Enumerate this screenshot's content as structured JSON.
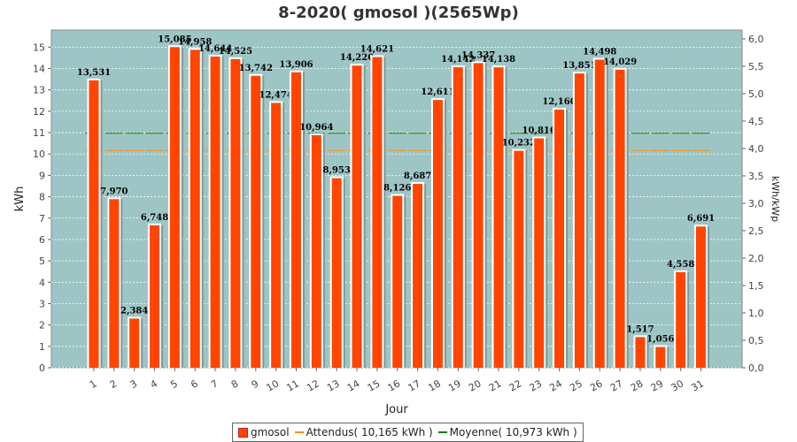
{
  "chart_data": {
    "type": "bar",
    "title": "8-2020( gmosol )(2565Wp)",
    "xlabel": "Jour",
    "ylabel": "kWh",
    "y2label": "kWh/kWp",
    "ylim": [
      0,
      15.8
    ],
    "y2lim": [
      0,
      6.16
    ],
    "yticks": [
      0,
      1,
      2,
      3,
      4,
      5,
      6,
      7,
      8,
      9,
      10,
      11,
      12,
      13,
      14,
      15
    ],
    "y2ticks": [
      "0,0",
      "0,5",
      "1,0",
      "1,5",
      "2,0",
      "2,5",
      "3,0",
      "3,5",
      "4,0",
      "4,5",
      "5,0",
      "5,5",
      "6,0"
    ],
    "grid": true,
    "legend_position": "bottom",
    "categories": [
      "1",
      "2",
      "3",
      "4",
      "5",
      "6",
      "7",
      "8",
      "9",
      "10",
      "11",
      "12",
      "13",
      "14",
      "15",
      "16",
      "17",
      "18",
      "19",
      "20",
      "21",
      "22",
      "23",
      "24",
      "25",
      "26",
      "27",
      "28",
      "29",
      "30",
      "31"
    ],
    "series": [
      {
        "name": "gmosol",
        "color": "#ff4500",
        "values": [
          13.531,
          7.97,
          2.384,
          6.748,
          15.085,
          14.958,
          14.644,
          14.525,
          13.742,
          12.474,
          13.906,
          10.964,
          8.953,
          14.22,
          14.621,
          8.126,
          8.687,
          12.611,
          14.142,
          14.337,
          14.138,
          10.232,
          10.816,
          12.16,
          13.851,
          14.498,
          14.029,
          1.517,
          1.056,
          4.558,
          6.691
        ],
        "labels": [
          "13,531",
          "7,970",
          "2,384",
          "6,748",
          "15,085",
          "14,958",
          "14,644",
          "14,525",
          "13,742",
          "12,474",
          "13,906",
          "10,964",
          "8,953",
          "14,220",
          "14,621",
          "8,126",
          "8,687",
          "12,611",
          "14,142",
          "14,337",
          "14,138",
          "10,232",
          "10,816",
          "12,160",
          "13,851",
          "14,498",
          "14,029",
          "1,517",
          "1,056",
          "4,558",
          "6,691"
        ]
      },
      {
        "name": "Attendus( 10,165 kWh )",
        "color": "#ff8c00",
        "value": 10.165
      },
      {
        "name": "Moyenne( 10,973 kWh )",
        "color": "#008000",
        "value": 10.973
      }
    ],
    "plot_bg": "#9ec5c5"
  }
}
